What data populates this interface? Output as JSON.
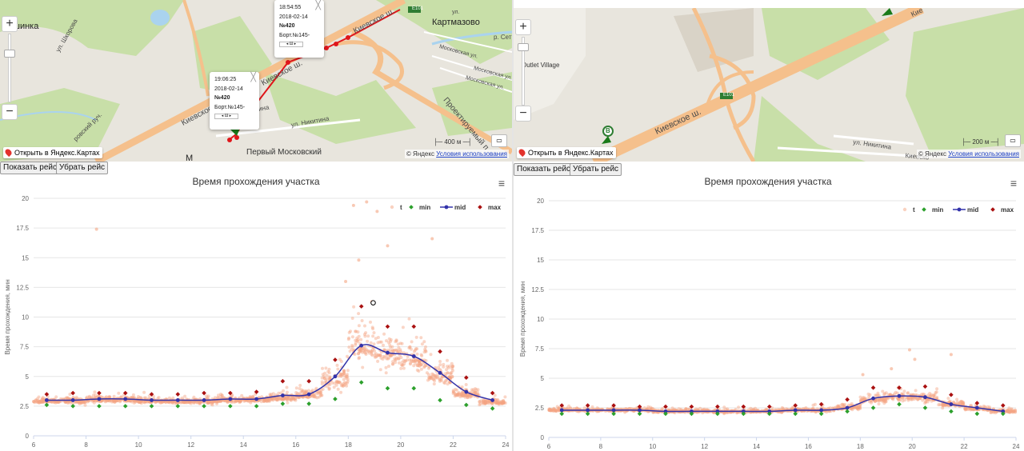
{
  "left": {
    "map": {
      "places": [
        "ашинка",
        "Картмазово",
        "Первый Московский",
        "М"
      ],
      "roads": [
        "Киевское ш.",
        "Киевское ш.",
        "Киевское ш.",
        "Проектируемый п",
        "Московская ул.",
        "Московская ул.",
        "Московская ул.",
        "ул. Никитина",
        "ул. Никитина",
        "ул. Шкорова",
        "ровский руч.",
        "р. Сет",
        "ул."
      ],
      "route_badge": "E101",
      "open_in_maps": "Открыть в Яндекс.Картах",
      "copyright_brand": "© Яндекс",
      "copyright_link": "Условия использования",
      "scale": "400 м",
      "ruler": "▭",
      "balloons": [
        {
          "time": "18:54:55",
          "date": "2018-02-14",
          "number": "№420",
          "bort": "Борт.№145-",
          "scroll": "◂ Ш ▸"
        },
        {
          "time": "19:06:25",
          "date": "2018-02-14",
          "number": "№420",
          "bort": "Борт.№145-",
          "scroll": "◂ Ш ▸"
        }
      ],
      "zoom_in": "+",
      "zoom_out": "−",
      "close_symbol": "╳"
    },
    "buttons": {
      "show": "Показать рейс",
      "remove": "Убрать рейс"
    }
  },
  "right": {
    "map": {
      "places": [
        "Outlet Village"
      ],
      "roads": [
        "Киевское ш.",
        "ул. Никитина",
        "Киевско",
        "Кие"
      ],
      "route_badge": "E101",
      "pin_label": "B",
      "open_in_maps": "Открыть в Яндекс.Картах",
      "copyright_brand": "© Яндекс",
      "copyright_link": "Условия использования",
      "scale": "200 м",
      "ruler": "▭",
      "zoom_in": "+",
      "zoom_out": "−"
    },
    "buttons": {
      "show": "Показать рейс",
      "remove": "Убрать рейс"
    }
  },
  "colors": {
    "scatter": "#f4a582",
    "min": "#2ca02c",
    "mid": "#3333aa",
    "max": "#aa1111",
    "road": "#f5c08c",
    "route": "#e0161b",
    "forest": "#c8dfa8"
  },
  "chart_data": [
    {
      "type": "scatter",
      "title": "Время прохождения участка",
      "ylabel": "Время прохождения, мин",
      "xlabel": "",
      "xlim": [
        6,
        24
      ],
      "ylim": [
        0,
        20
      ],
      "xticks": [
        6,
        8,
        10,
        12,
        14,
        16,
        18,
        20,
        22,
        24
      ],
      "yticks": [
        0,
        2.5,
        5,
        7.5,
        10,
        12.5,
        15,
        17.5,
        20
      ],
      "grid": true,
      "legend": {
        "position": "top-right",
        "entries": [
          "t",
          "min",
          "mid",
          "max"
        ]
      },
      "menu_icon": "≡",
      "x": [
        6.5,
        7.5,
        8.5,
        9.5,
        10.5,
        11.5,
        12.5,
        13.5,
        14.5,
        15.5,
        16.5,
        17.5,
        18.5,
        19.5,
        20.5,
        21.5,
        22.5,
        23.5
      ],
      "series": [
        {
          "name": "min",
          "values": [
            2.6,
            2.5,
            2.5,
            2.5,
            2.5,
            2.5,
            2.5,
            2.5,
            2.5,
            2.7,
            2.7,
            3.1,
            4.5,
            4.0,
            4.0,
            3.0,
            2.6,
            2.3
          ]
        },
        {
          "name": "mid",
          "values": [
            3.0,
            3.0,
            3.1,
            3.1,
            3.0,
            3.0,
            3.0,
            3.1,
            3.1,
            3.4,
            3.5,
            5.0,
            7.6,
            7.0,
            6.7,
            5.3,
            3.7,
            3.0
          ]
        },
        {
          "name": "max",
          "values": [
            3.5,
            3.6,
            3.6,
            3.6,
            3.5,
            3.5,
            3.6,
            3.6,
            3.7,
            4.6,
            4.6,
            6.4,
            10.9,
            9.2,
            9.2,
            7.1,
            4.9,
            3.6
          ]
        }
      ],
      "scatter_profile": {
        "x": [
          6.5,
          7.5,
          8.5,
          9.5,
          10.5,
          11.5,
          12.5,
          13.5,
          14.5,
          15.5,
          16.5,
          17.5,
          18.5,
          19.5,
          20.5,
          21.5,
          22.5,
          23.5
        ],
        "center": [
          2.9,
          2.9,
          3.0,
          3.0,
          2.9,
          2.9,
          2.9,
          3.0,
          3.0,
          3.2,
          3.4,
          4.6,
          7.5,
          6.8,
          6.4,
          5.0,
          3.5,
          2.8
        ],
        "spread": [
          0.5,
          0.6,
          0.6,
          0.6,
          0.5,
          0.5,
          0.6,
          0.6,
          0.6,
          0.9,
          1.0,
          2.0,
          3.6,
          3.0,
          3.0,
          2.0,
          1.0,
          0.5
        ],
        "count": 1600,
        "outliers": [
          [
            8.4,
            17.4
          ],
          [
            18.2,
            19.4
          ],
          [
            18.7,
            19.7
          ],
          [
            19.1,
            18.9
          ],
          [
            19.5,
            16.0
          ],
          [
            21.2,
            16.6
          ],
          [
            18.9,
            11.3
          ],
          [
            18.4,
            14.8
          ],
          [
            17.9,
            13.0
          ]
        ]
      },
      "highlight": {
        "x": 18.95,
        "y": 11.2
      }
    },
    {
      "type": "scatter",
      "title": "Время прохождения участка",
      "ylabel": "Время прохождения, мин",
      "xlabel": "",
      "xlim": [
        6,
        24
      ],
      "ylim": [
        0,
        20
      ],
      "xticks": [
        6,
        8,
        10,
        12,
        14,
        16,
        18,
        20,
        22,
        24
      ],
      "yticks": [
        0,
        2.5,
        5,
        7.5,
        10,
        12.5,
        15,
        17.5,
        20
      ],
      "grid": true,
      "legend": {
        "position": "top-right",
        "entries": [
          "t",
          "min",
          "mid",
          "max"
        ]
      },
      "menu_icon": "≡",
      "x": [
        6.5,
        7.5,
        8.5,
        9.5,
        10.5,
        11.5,
        12.5,
        13.5,
        14.5,
        15.5,
        16.5,
        17.5,
        18.5,
        19.5,
        20.5,
        21.5,
        22.5,
        23.5
      ],
      "series": [
        {
          "name": "min",
          "values": [
            2.0,
            2.0,
            2.0,
            2.0,
            2.0,
            2.0,
            2.0,
            2.0,
            2.0,
            2.0,
            2.0,
            2.2,
            2.5,
            2.8,
            2.5,
            2.2,
            2.0,
            2.0
          ]
        },
        {
          "name": "mid",
          "values": [
            2.3,
            2.3,
            2.3,
            2.3,
            2.2,
            2.2,
            2.2,
            2.2,
            2.2,
            2.3,
            2.3,
            2.5,
            3.3,
            3.5,
            3.4,
            2.8,
            2.5,
            2.2
          ]
        },
        {
          "name": "max",
          "values": [
            2.7,
            2.7,
            2.7,
            2.6,
            2.6,
            2.6,
            2.6,
            2.6,
            2.6,
            2.7,
            2.8,
            3.2,
            4.2,
            4.2,
            4.3,
            3.6,
            2.9,
            2.7
          ]
        }
      ],
      "scatter_profile": {
        "x": [
          6.5,
          7.5,
          8.5,
          9.5,
          10.5,
          11.5,
          12.5,
          13.5,
          14.5,
          15.5,
          16.5,
          17.5,
          18.5,
          19.5,
          20.5,
          21.5,
          22.5,
          23.5
        ],
        "center": [
          2.3,
          2.3,
          2.3,
          2.3,
          2.2,
          2.2,
          2.2,
          2.2,
          2.2,
          2.3,
          2.3,
          2.5,
          3.2,
          3.4,
          3.3,
          2.8,
          2.4,
          2.2
        ],
        "spread": [
          0.35,
          0.35,
          0.35,
          0.35,
          0.35,
          0.35,
          0.35,
          0.35,
          0.35,
          0.35,
          0.4,
          0.5,
          0.9,
          1.0,
          0.9,
          0.6,
          0.4,
          0.35
        ],
        "count": 1300,
        "outliers": [
          [
            19.9,
            7.4
          ],
          [
            20.1,
            6.6
          ],
          [
            21.5,
            7.0
          ],
          [
            18.1,
            5.3
          ],
          [
            19.2,
            5.8
          ]
        ]
      },
      "highlight": null
    }
  ]
}
